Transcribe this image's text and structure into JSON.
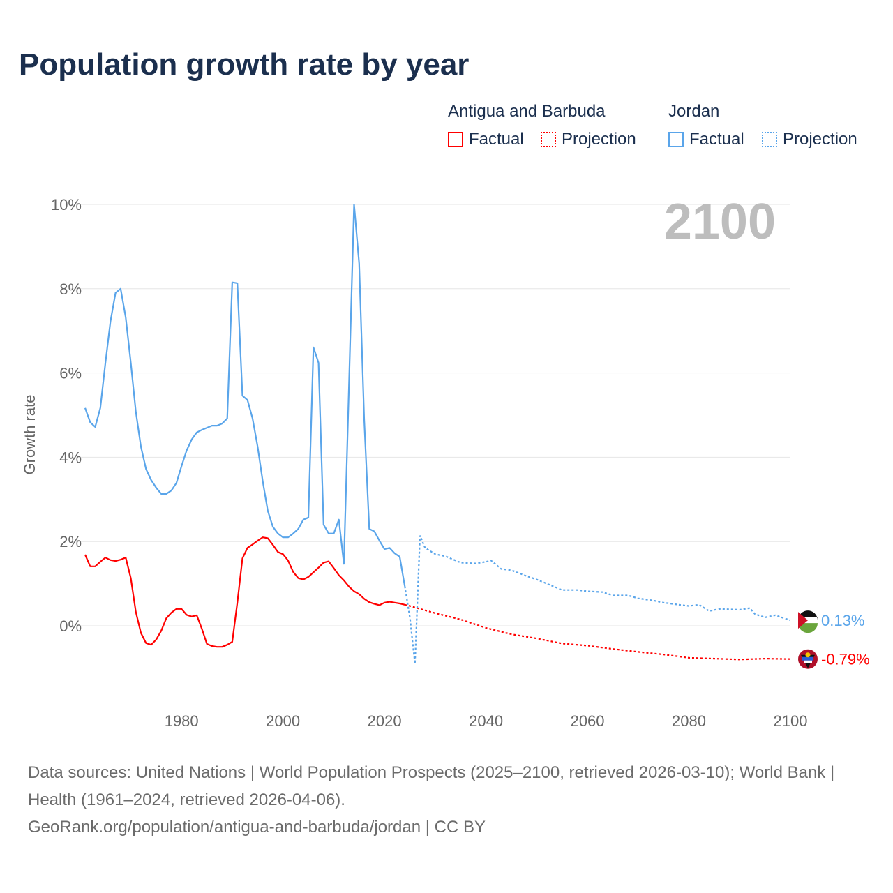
{
  "title": "Population growth rate by year",
  "legend": {
    "groups": [
      {
        "name": "Antigua and Barbuda",
        "color": "#ff0000",
        "factual": "Factual",
        "projection": "Projection"
      },
      {
        "name": "Jordan",
        "color": "#5aa5ea",
        "factual": "Factual",
        "projection": "Projection"
      }
    ]
  },
  "year_overlay": "2100",
  "footer": {
    "sources": "Data sources: United Nations | World Population Prospects (2025–2100, retrieved 2026-03-10); World Bank | Health (1961–2024, retrieved 2026-04-06).",
    "credit": "GeoRank.org/population/antigua-and-barbuda/jordan | CC BY"
  },
  "chart_data": {
    "type": "line",
    "title": "Population growth rate by year",
    "xlabel": "",
    "ylabel": "Growth rate",
    "xlim": [
      1961,
      2100
    ],
    "ylim": [
      -1.5,
      10
    ],
    "x_ticks": [
      "1980",
      "2000",
      "2020",
      "2040",
      "2060",
      "2080",
      "2100"
    ],
    "x_tick_values": [
      1980,
      2000,
      2020,
      2040,
      2060,
      2080,
      2100
    ],
    "y_ticks": [
      "0%",
      "2%",
      "4%",
      "6%",
      "8%",
      "10%"
    ],
    "y_tick_values": [
      0,
      2,
      4,
      6,
      8,
      10
    ],
    "grid": true,
    "series": [
      {
        "name": "Antigua and Barbuda",
        "color": "#ff0000",
        "end_label": "-0.79%",
        "factual": [
          [
            1961,
            1.69
          ],
          [
            1962,
            1.41
          ],
          [
            1963,
            1.41
          ],
          [
            1964,
            1.52
          ],
          [
            1965,
            1.62
          ],
          [
            1966,
            1.56
          ],
          [
            1967,
            1.54
          ],
          [
            1968,
            1.57
          ],
          [
            1969,
            1.62
          ],
          [
            1970,
            1.13
          ],
          [
            1971,
            0.33
          ],
          [
            1972,
            -0.17
          ],
          [
            1973,
            -0.41
          ],
          [
            1974,
            -0.45
          ],
          [
            1975,
            -0.33
          ],
          [
            1976,
            -0.12
          ],
          [
            1977,
            0.18
          ],
          [
            1978,
            0.31
          ],
          [
            1979,
            0.4
          ],
          [
            1980,
            0.4
          ],
          [
            1981,
            0.26
          ],
          [
            1982,
            0.22
          ],
          [
            1983,
            0.25
          ],
          [
            1984,
            -0.07
          ],
          [
            1985,
            -0.43
          ],
          [
            1986,
            -0.48
          ],
          [
            1987,
            -0.5
          ],
          [
            1988,
            -0.5
          ],
          [
            1989,
            -0.45
          ],
          [
            1990,
            -0.38
          ],
          [
            1991,
            0.55
          ],
          [
            1992,
            1.6
          ],
          [
            1993,
            1.85
          ],
          [
            1994,
            1.93
          ],
          [
            1995,
            2.02
          ],
          [
            1996,
            2.1
          ],
          [
            1997,
            2.08
          ],
          [
            1998,
            1.92
          ],
          [
            1999,
            1.75
          ],
          [
            2000,
            1.7
          ],
          [
            2001,
            1.55
          ],
          [
            2002,
            1.28
          ],
          [
            2003,
            1.13
          ],
          [
            2004,
            1.1
          ],
          [
            2005,
            1.16
          ],
          [
            2006,
            1.27
          ],
          [
            2007,
            1.38
          ],
          [
            2008,
            1.5
          ],
          [
            2009,
            1.53
          ],
          [
            2010,
            1.37
          ],
          [
            2011,
            1.2
          ],
          [
            2012,
            1.08
          ],
          [
            2013,
            0.93
          ],
          [
            2014,
            0.82
          ],
          [
            2015,
            0.75
          ],
          [
            2016,
            0.64
          ],
          [
            2017,
            0.56
          ],
          [
            2018,
            0.52
          ],
          [
            2019,
            0.49
          ],
          [
            2020,
            0.55
          ],
          [
            2021,
            0.57
          ],
          [
            2022,
            0.55
          ],
          [
            2023,
            0.53
          ],
          [
            2024,
            0.5
          ]
        ],
        "projection": [
          [
            2024,
            0.5
          ],
          [
            2025,
            0.47
          ],
          [
            2030,
            0.3
          ],
          [
            2035,
            0.15
          ],
          [
            2040,
            -0.05
          ],
          [
            2045,
            -0.2
          ],
          [
            2050,
            -0.3
          ],
          [
            2055,
            -0.42
          ],
          [
            2060,
            -0.47
          ],
          [
            2065,
            -0.55
          ],
          [
            2070,
            -0.62
          ],
          [
            2075,
            -0.68
          ],
          [
            2080,
            -0.76
          ],
          [
            2085,
            -0.78
          ],
          [
            2090,
            -0.8
          ],
          [
            2095,
            -0.78
          ],
          [
            2100,
            -0.79
          ]
        ]
      },
      {
        "name": "Jordan",
        "color": "#5aa5ea",
        "end_label": "0.13%",
        "factual": [
          [
            1961,
            5.17
          ],
          [
            1962,
            4.83
          ],
          [
            1963,
            4.72
          ],
          [
            1964,
            5.17
          ],
          [
            1965,
            6.24
          ],
          [
            1966,
            7.23
          ],
          [
            1967,
            7.9
          ],
          [
            1968,
            8.0
          ],
          [
            1969,
            7.32
          ],
          [
            1970,
            6.24
          ],
          [
            1971,
            5.08
          ],
          [
            1972,
            4.25
          ],
          [
            1973,
            3.72
          ],
          [
            1974,
            3.46
          ],
          [
            1975,
            3.28
          ],
          [
            1976,
            3.13
          ],
          [
            1977,
            3.13
          ],
          [
            1978,
            3.21
          ],
          [
            1979,
            3.39
          ],
          [
            1980,
            3.79
          ],
          [
            1981,
            4.16
          ],
          [
            1982,
            4.42
          ],
          [
            1983,
            4.59
          ],
          [
            1984,
            4.65
          ],
          [
            1985,
            4.7
          ],
          [
            1986,
            4.75
          ],
          [
            1987,
            4.75
          ],
          [
            1988,
            4.8
          ],
          [
            1989,
            4.92
          ],
          [
            1990,
            8.15
          ],
          [
            1991,
            8.13
          ],
          [
            1992,
            5.46
          ],
          [
            1993,
            5.36
          ],
          [
            1994,
            4.92
          ],
          [
            1995,
            4.25
          ],
          [
            1996,
            3.43
          ],
          [
            1997,
            2.73
          ],
          [
            1998,
            2.35
          ],
          [
            1999,
            2.19
          ],
          [
            2000,
            2.1
          ],
          [
            2001,
            2.1
          ],
          [
            2002,
            2.19
          ],
          [
            2003,
            2.3
          ],
          [
            2004,
            2.52
          ],
          [
            2005,
            2.57
          ],
          [
            2006,
            6.61
          ],
          [
            2007,
            6.24
          ],
          [
            2008,
            2.4
          ],
          [
            2009,
            2.19
          ],
          [
            2010,
            2.19
          ],
          [
            2011,
            2.52
          ],
          [
            2012,
            1.47
          ],
          [
            2013,
            5.7
          ],
          [
            2014,
            10.0
          ],
          [
            2015,
            8.6
          ],
          [
            2016,
            4.9
          ],
          [
            2017,
            2.3
          ],
          [
            2018,
            2.24
          ],
          [
            2019,
            2.02
          ],
          [
            2020,
            1.82
          ],
          [
            2021,
            1.85
          ],
          [
            2022,
            1.72
          ],
          [
            2023,
            1.64
          ],
          [
            2024,
            0.94
          ]
        ],
        "projection": [
          [
            2024,
            0.94
          ],
          [
            2025,
            0.2
          ],
          [
            2026,
            -0.9
          ],
          [
            2027,
            2.14
          ],
          [
            2028,
            1.85
          ],
          [
            2030,
            1.7
          ],
          [
            2032,
            1.65
          ],
          [
            2035,
            1.5
          ],
          [
            2038,
            1.48
          ],
          [
            2040,
            1.52
          ],
          [
            2041,
            1.55
          ],
          [
            2043,
            1.35
          ],
          [
            2045,
            1.32
          ],
          [
            2048,
            1.18
          ],
          [
            2050,
            1.1
          ],
          [
            2053,
            0.95
          ],
          [
            2055,
            0.85
          ],
          [
            2058,
            0.85
          ],
          [
            2060,
            0.82
          ],
          [
            2063,
            0.8
          ],
          [
            2065,
            0.72
          ],
          [
            2068,
            0.72
          ],
          [
            2070,
            0.65
          ],
          [
            2073,
            0.6
          ],
          [
            2075,
            0.55
          ],
          [
            2078,
            0.5
          ],
          [
            2080,
            0.47
          ],
          [
            2082,
            0.5
          ],
          [
            2084,
            0.35
          ],
          [
            2086,
            0.4
          ],
          [
            2090,
            0.38
          ],
          [
            2092,
            0.42
          ],
          [
            2093,
            0.28
          ],
          [
            2095,
            0.2
          ],
          [
            2097,
            0.25
          ],
          [
            2100,
            0.13
          ]
        ]
      }
    ]
  }
}
